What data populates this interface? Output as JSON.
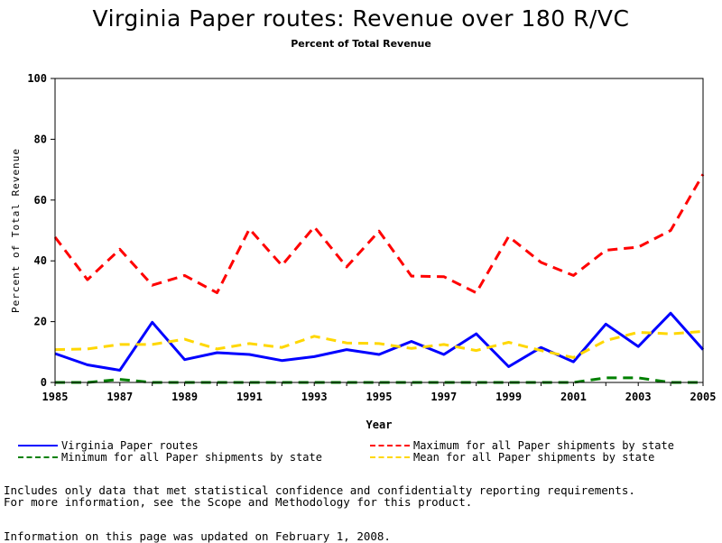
{
  "page": {
    "title": "Virginia Paper routes: Revenue over 180 R/VC",
    "subtitle": "Percent of Total Revenue",
    "notes": [
      "Includes only data that met statistical confidence and confidentialty reporting requirements.",
      "For more information, see the Scope and Methodology for this product."
    ],
    "updated": "Information on this page was updated on February 1, 2008."
  },
  "chart_data": {
    "type": "line",
    "title": "Virginia Paper routes: Revenue over 180 R/VC",
    "subtitle": "Percent of Total Revenue",
    "xlabel": "Year",
    "ylabel": "Percent of Total Revenue",
    "xlim": [
      1985,
      2005
    ],
    "ylim": [
      0,
      100
    ],
    "xticks": [
      1985,
      1987,
      1989,
      1991,
      1993,
      1995,
      1997,
      1999,
      2001,
      2003,
      2005
    ],
    "yticks": [
      0,
      20,
      40,
      60,
      80,
      100
    ],
    "grid": false,
    "legend_position": "bottom",
    "x": [
      1985,
      1986,
      1987,
      1988,
      1989,
      1990,
      1991,
      1992,
      1993,
      1994,
      1995,
      1996,
      1997,
      1998,
      1999,
      2000,
      2001,
      2002,
      2003,
      2004,
      2005
    ],
    "series": [
      {
        "name": "Virginia Paper routes",
        "color": "#0000ff",
        "dash": "solid",
        "width": 3,
        "values": [
          9.5,
          5.8,
          4,
          19.8,
          7.5,
          9.8,
          9.2,
          7.2,
          8.5,
          10.8,
          9.2,
          13.5,
          9.2,
          16,
          5.2,
          11.5,
          6.8,
          19.2,
          11.8,
          22.8,
          10.8
        ]
      },
      {
        "name": "Maximum for all Paper shipments by state",
        "color": "#ff0000",
        "dash": "dashed",
        "width": 3,
        "values": [
          47.8,
          33.8,
          43.8,
          32,
          35.2,
          29.5,
          50.5,
          38.5,
          51.2,
          38,
          49.8,
          35,
          34.8,
          29.5,
          48,
          39.5,
          35.2,
          43.5,
          44.5,
          50,
          68.5
        ]
      },
      {
        "name": "Minimum for all Paper shipments by state",
        "color": "#008000",
        "dash": "dashed",
        "width": 3,
        "values": [
          0,
          0,
          1,
          0,
          0,
          0,
          0,
          0,
          0,
          0,
          0,
          0,
          0,
          0,
          0,
          0,
          0,
          1.5,
          1.5,
          0,
          0
        ]
      },
      {
        "name": "Mean for all Paper shipments by state",
        "color": "#ffd700",
        "dash": "dashed",
        "width": 3,
        "values": [
          10.8,
          11,
          12.5,
          12.5,
          14.2,
          11,
          12.8,
          11.5,
          15.2,
          13,
          12.8,
          11.2,
          12.5,
          10.5,
          13.2,
          10.5,
          8.2,
          13.8,
          16.5,
          16,
          16.8
        ]
      }
    ]
  }
}
